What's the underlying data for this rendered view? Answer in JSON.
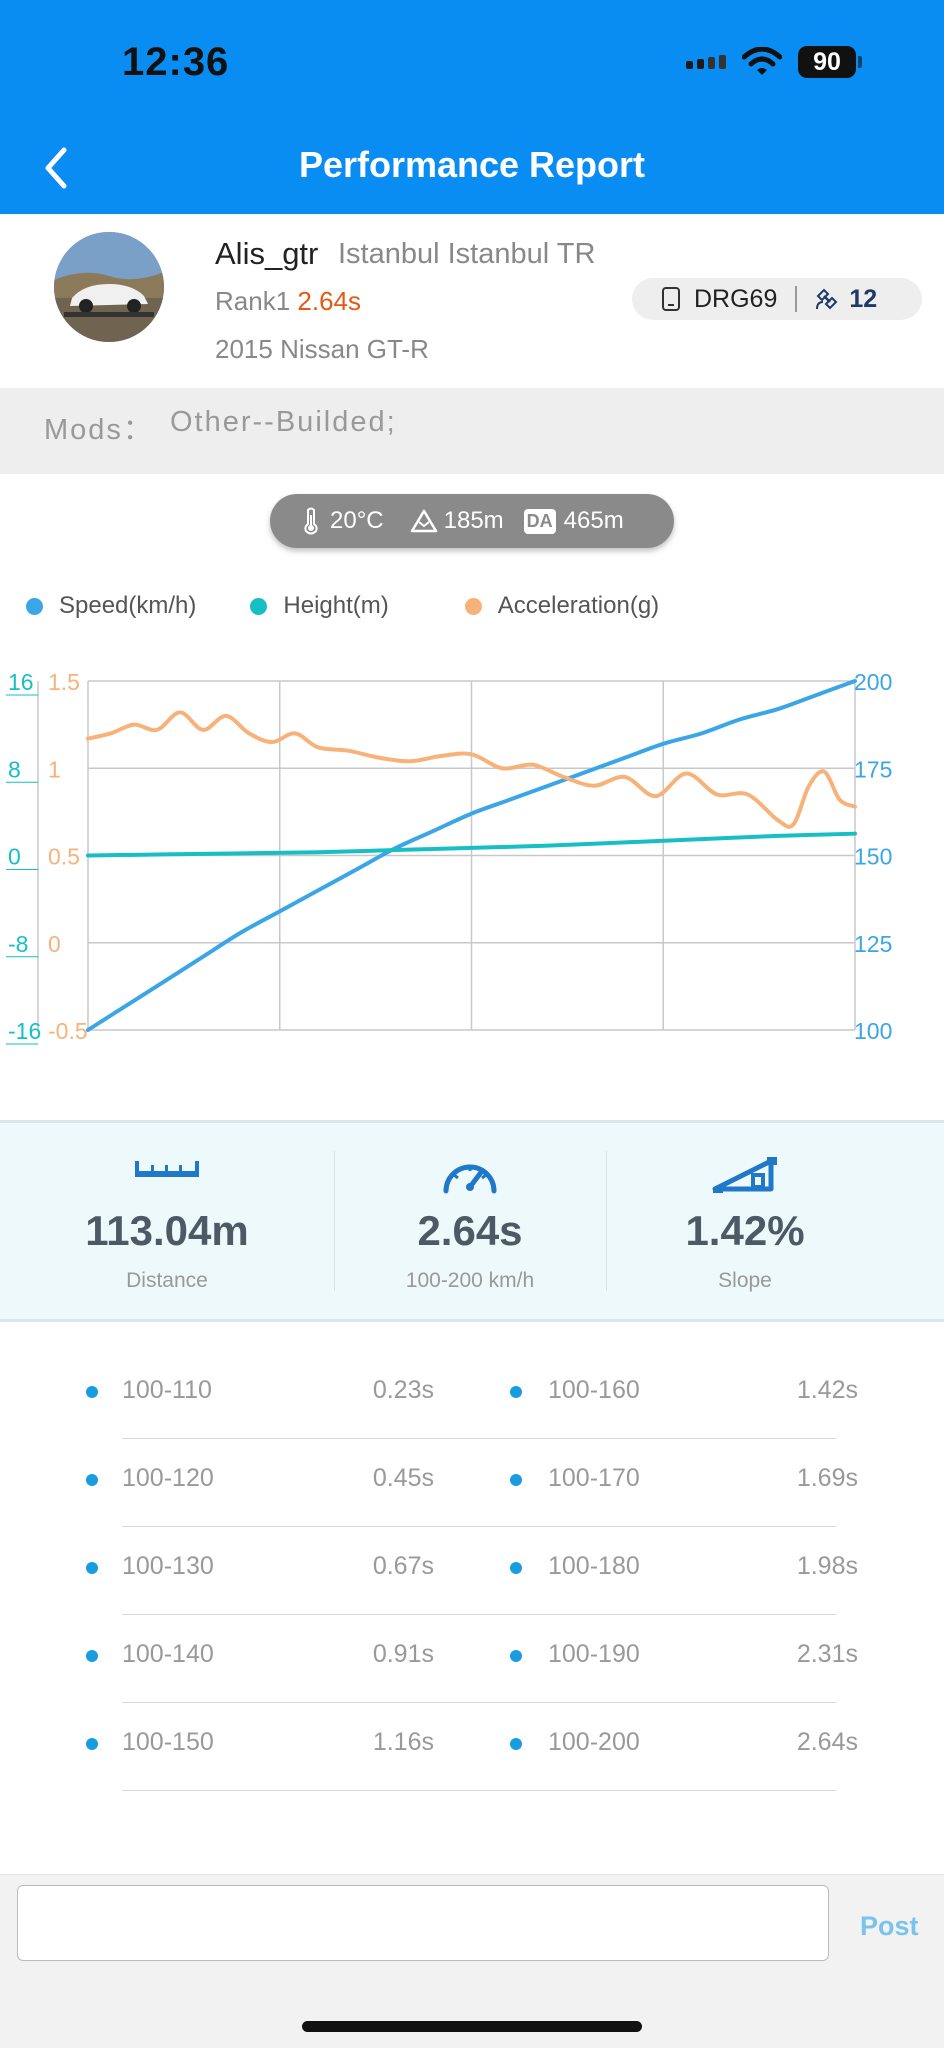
{
  "status_bar": {
    "time": "12:36",
    "battery": "90"
  },
  "header": {
    "title": "Performance Report"
  },
  "profile": {
    "username": "Alis_gtr",
    "location": "Istanbul Istanbul TR",
    "rank_label": "Rank1",
    "rank_time": "2.64s",
    "car": "2015 Nissan GT-R",
    "device": "DRG69",
    "satellites": "12"
  },
  "mods": {
    "label": "Mods：",
    "value": "Other--Builded;"
  },
  "weather": {
    "temperature": "20°C",
    "altitude": "185m",
    "da_label": "DA",
    "density_altitude": "465m"
  },
  "legend": [
    {
      "label": "Speed(km/h)",
      "color": "#3aa6e6"
    },
    {
      "label": "Height(m)",
      "color": "#17bfc4"
    },
    {
      "label": "Acceleration(g)",
      "color": "#f7b27a"
    }
  ],
  "chart_data": {
    "type": "line",
    "x": [
      0,
      0.25,
      0.5,
      0.75,
      1.0
    ],
    "series": [
      {
        "name": "Speed(km/h)",
        "axis": "right",
        "color": "#3aa6e6",
        "x": [
          0,
          0.05,
          0.1,
          0.15,
          0.2,
          0.25,
          0.3,
          0.35,
          0.4,
          0.45,
          0.5,
          0.55,
          0.6,
          0.65,
          0.7,
          0.75,
          0.8,
          0.85,
          0.9,
          0.95,
          1.0
        ],
        "values": [
          100,
          107,
          114,
          121,
          128,
          134,
          140,
          146,
          152,
          157,
          162,
          166,
          170,
          174,
          178,
          182,
          185,
          189,
          192,
          196,
          200
        ]
      },
      {
        "name": "Height(m)",
        "axis": "left_outer",
        "color": "#17bfc4",
        "x": [
          0,
          0.1,
          0.2,
          0.3,
          0.4,
          0.5,
          0.6,
          0.7,
          0.8,
          0.9,
          1.0
        ],
        "values": [
          0,
          0.1,
          0.2,
          0.3,
          0.5,
          0.7,
          0.9,
          1.2,
          1.5,
          1.8,
          2.0
        ]
      },
      {
        "name": "Acceleration(g)",
        "axis": "left_inner",
        "color": "#f7b27a",
        "x": [
          0,
          0.03,
          0.06,
          0.09,
          0.12,
          0.15,
          0.18,
          0.21,
          0.24,
          0.27,
          0.3,
          0.34,
          0.38,
          0.42,
          0.46,
          0.5,
          0.54,
          0.58,
          0.62,
          0.66,
          0.7,
          0.74,
          0.78,
          0.82,
          0.86,
          0.9,
          0.92,
          0.94,
          0.96,
          0.98,
          1.0
        ],
        "values": [
          1.17,
          1.2,
          1.25,
          1.22,
          1.32,
          1.22,
          1.3,
          1.2,
          1.15,
          1.2,
          1.12,
          1.1,
          1.06,
          1.04,
          1.07,
          1.08,
          1.0,
          1.02,
          0.95,
          0.9,
          0.95,
          0.84,
          0.97,
          0.85,
          0.85,
          0.7,
          0.68,
          0.9,
          0.98,
          0.82,
          0.78
        ]
      }
    ],
    "y_left_outer": {
      "ticks": [
        "16",
        "8",
        "0",
        "-8",
        "-16"
      ],
      "ylim": [
        -16,
        16
      ]
    },
    "y_left_inner": {
      "ticks": [
        "1.5",
        "1",
        "0.5",
        "0",
        "-0.5"
      ],
      "ylim": [
        -0.5,
        1.5
      ]
    },
    "y_right": {
      "ticks": [
        "200",
        "175",
        "150",
        "125",
        "100"
      ],
      "ylim": [
        100,
        200
      ]
    },
    "grid": true
  },
  "stats": [
    {
      "value": "113.04m",
      "label": "Distance",
      "icon": "ruler-icon"
    },
    {
      "value": "2.64s",
      "label": "100-200 km/h",
      "icon": "speedometer-icon"
    },
    {
      "value": "1.42%",
      "label": "Slope",
      "icon": "slope-icon"
    }
  ],
  "splits": [
    {
      "range": "100-110",
      "time": "0.23s"
    },
    {
      "range": "100-120",
      "time": "0.45s"
    },
    {
      "range": "100-130",
      "time": "0.67s"
    },
    {
      "range": "100-140",
      "time": "0.91s"
    },
    {
      "range": "100-150",
      "time": "1.16s"
    },
    {
      "range": "100-160",
      "time": "1.42s"
    },
    {
      "range": "100-170",
      "time": "1.69s"
    },
    {
      "range": "100-180",
      "time": "1.98s"
    },
    {
      "range": "100-190",
      "time": "2.31s"
    },
    {
      "range": "100-200",
      "time": "2.64s"
    }
  ],
  "comment": {
    "value": "",
    "post_label": "Post"
  }
}
